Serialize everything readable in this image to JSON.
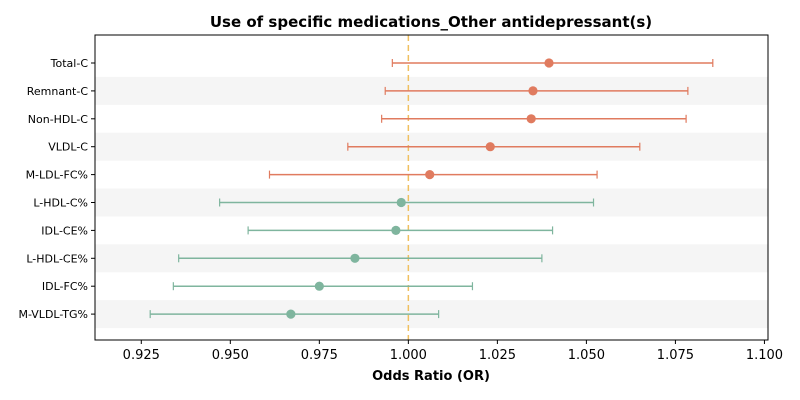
{
  "chart_data": {
    "type": "forest",
    "title": "Use of specific medications_Other antidepressant(s)",
    "xlabel": "Odds Ratio (OR)",
    "ylabel": "",
    "xlim": [
      0.912,
      1.101
    ],
    "xticks": [
      "0.925",
      "0.950",
      "0.975",
      "1.000",
      "1.025",
      "1.050",
      "1.075",
      "1.100"
    ],
    "reference_line": 1.0,
    "grid": false,
    "alternating_row_shading": true,
    "colors": {
      "positive": "#e07b5f",
      "negative": "#7fb59e",
      "reference": "#f0c060",
      "shade": "#f5f5f5"
    },
    "rows": [
      {
        "label": "Total-C",
        "or": 1.0395,
        "lower": 0.9955,
        "upper": 1.0855,
        "group": "positive"
      },
      {
        "label": "Remnant-C",
        "or": 1.035,
        "lower": 0.9935,
        "upper": 1.0785,
        "group": "positive"
      },
      {
        "label": "Non-HDL-C",
        "or": 1.0345,
        "lower": 0.9925,
        "upper": 1.078,
        "group": "positive"
      },
      {
        "label": "VLDL-C",
        "or": 1.023,
        "lower": 0.983,
        "upper": 1.065,
        "group": "positive"
      },
      {
        "label": "M-LDL-FC%",
        "or": 1.006,
        "lower": 0.961,
        "upper": 1.053,
        "group": "positive"
      },
      {
        "label": "L-HDL-C%",
        "or": 0.998,
        "lower": 0.947,
        "upper": 1.052,
        "group": "negative"
      },
      {
        "label": "IDL-CE%",
        "or": 0.9965,
        "lower": 0.955,
        "upper": 1.0405,
        "group": "negative"
      },
      {
        "label": "L-HDL-CE%",
        "or": 0.985,
        "lower": 0.9355,
        "upper": 1.0375,
        "group": "negative"
      },
      {
        "label": "IDL-FC%",
        "or": 0.975,
        "lower": 0.934,
        "upper": 1.018,
        "group": "negative"
      },
      {
        "label": "M-VLDL-TG%",
        "or": 0.967,
        "lower": 0.9275,
        "upper": 1.0085,
        "group": "negative"
      }
    ]
  }
}
